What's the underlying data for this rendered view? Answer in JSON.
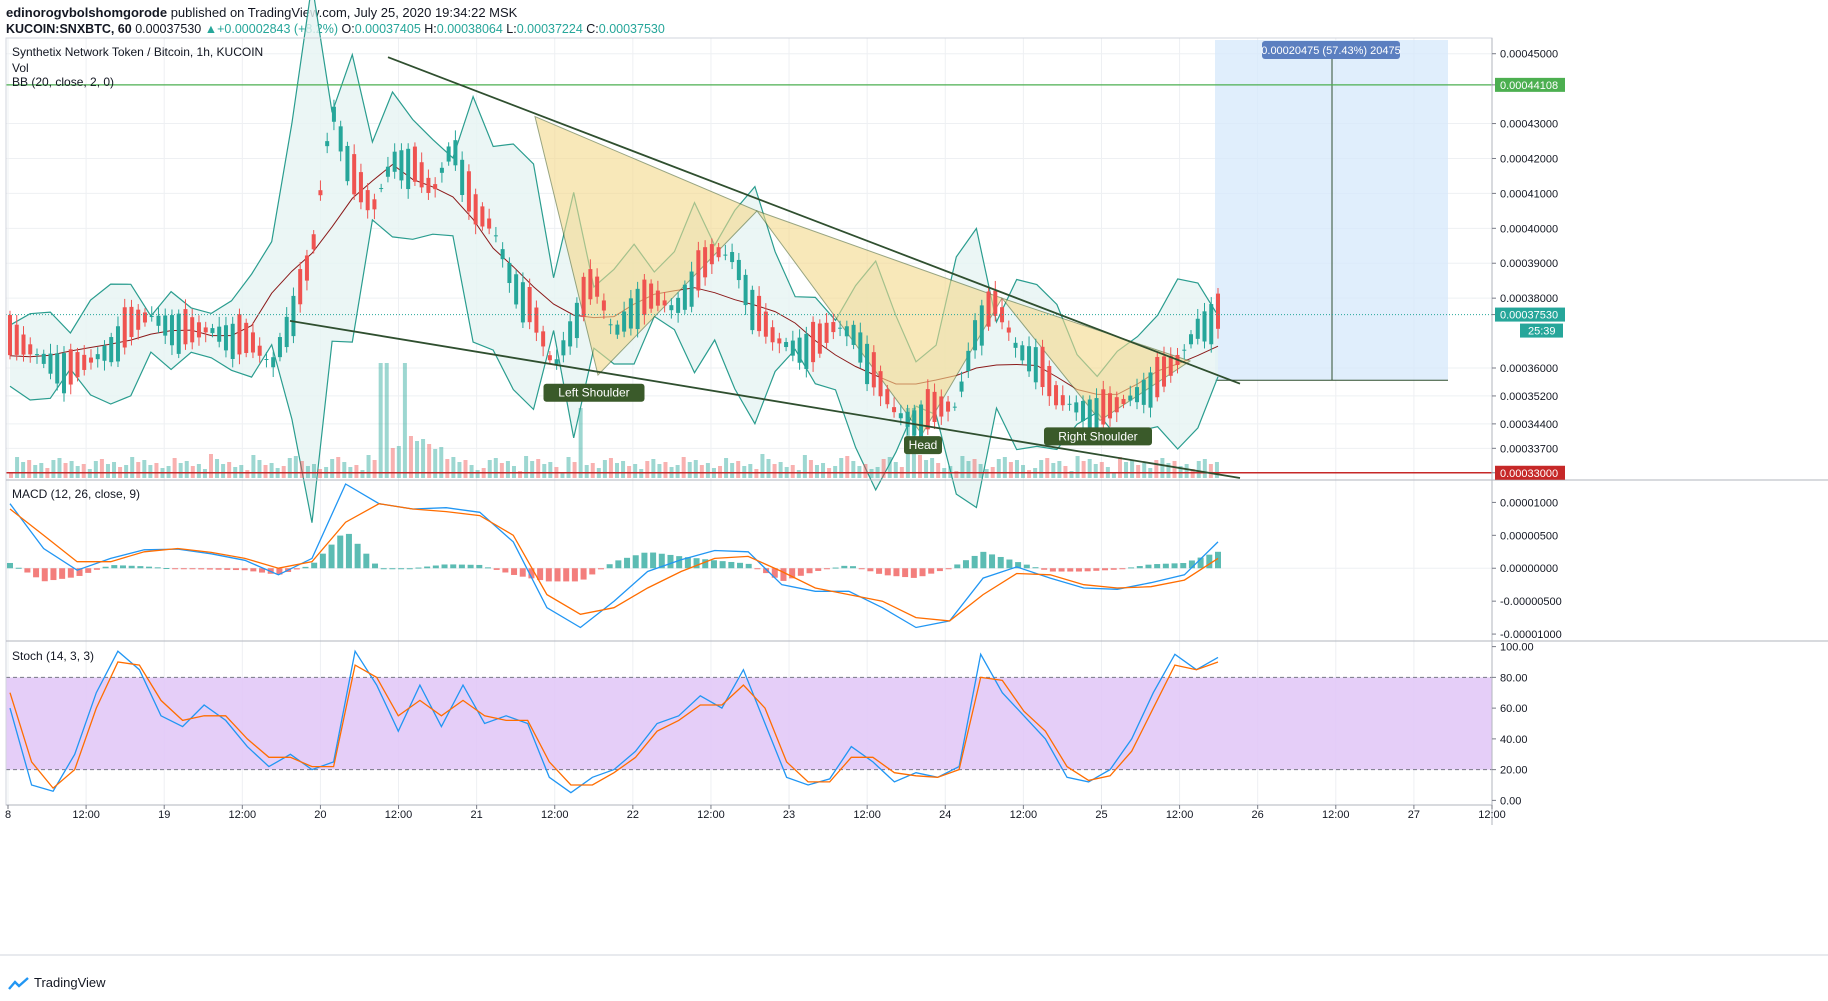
{
  "header": {
    "author": "edinorogvbolshomgorode",
    "published": "published on TradingView.com, July 25, 2020 19:34:22 MSK",
    "symbol": "KUCOIN:SNXBTC, 60",
    "last": "0.00037530",
    "change": "+0.00002843 (+8.2%)",
    "o_label": "O:",
    "o": "0.00037405",
    "h_label": "H:",
    "h": "0.00038064",
    "l_label": "L:",
    "l": "0.00037224",
    "c_label": "C:",
    "c": "0.00037530"
  },
  "footer": {
    "brand": "TradingView"
  },
  "colors": {
    "up": "#26a69a",
    "down": "#ef5350",
    "bb": "#2a9d8f",
    "bb_fill": "#e6f4f2",
    "basis": "#8b1a1a",
    "trend": "#2f4f2f",
    "pattern": "#f5d98b",
    "projection": "#d6e8fb",
    "macd": "#2196f3",
    "signal": "#ff6d00",
    "stoch_k": "#2196f3",
    "stoch_d": "#ff6d00",
    "stoch_band": "#e1c6f7",
    "resistance": "#4caf50",
    "support": "#c62828"
  },
  "chart_data": [
    {
      "type": "candlestick",
      "title": "Synthetix Network Token / Bitcoin, 1h, KUCOIN",
      "legend": [
        "Vol",
        "BB (20, close, 2, 0)"
      ],
      "x_ticks": [
        "8",
        "12:00",
        "19",
        "12:00",
        "20",
        "12:00",
        "21",
        "12:00",
        "22",
        "12:00",
        "23",
        "12:00",
        "24",
        "12:00",
        "25",
        "12:00",
        "26",
        "12:00",
        "27",
        "12:00"
      ],
      "y_ticks": [
        "0.00045000",
        "0.00044108",
        "0.00043000",
        "0.00042000",
        "0.00041000",
        "0.00040000",
        "0.00039000",
        "0.00038000",
        "0.00037530",
        "0.00036000",
        "0.00035200",
        "0.00034400",
        "0.00033700",
        "0.00033000"
      ],
      "ylim": [
        0.0003285,
        0.0004545
      ],
      "close_series_approx": [
        0.000368,
        0.000365,
        0.000362,
        0.000359,
        0.000362,
        0.000366,
        0.000372,
        0.000375,
        0.000372,
        0.00037,
        0.000371,
        0.000369,
        0.000367,
        0.000361,
        0.000375,
        0.000392,
        0.000435,
        0.000415,
        0.000405,
        0.00042,
        0.000418,
        0.00041,
        0.000425,
        0.000405,
        0.0004,
        0.000385,
        0.000375,
        0.00036,
        0.000373,
        0.000385,
        0.00037,
        0.000378,
        0.00038,
        0.000377,
        0.000385,
        0.000393,
        0.000392,
        0.000376,
        0.000368,
        0.000366,
        0.000366,
        0.000372,
        0.00037,
        0.000357,
        0.000347,
        0.000345,
        0.000348,
        0.000349,
        0.000372,
        0.000378,
        0.000366,
        0.000362,
        0.000351,
        0.000349,
        0.000347,
        0.000349,
        0.000353,
        0.000356,
        0.000362,
        0.000372,
        0.000375
      ],
      "annotations": [
        "Left Shoulder",
        "Head",
        "Right Shoulder"
      ],
      "projection_label": "0.00020475 (57.43%) 20475",
      "timer": "25:39",
      "resistance_level": 0.00044108,
      "support_level": 0.00033
    },
    {
      "type": "line",
      "title": "MACD (12, 26, close, 9)",
      "y_ticks": [
        "0.00001000",
        "0.00000500",
        "0.00000000",
        "-0.00000500",
        "-0.00001000"
      ],
      "ylim": [
        -1.09e-05,
        1.31e-05
      ],
      "series": [
        {
          "name": "MACD",
          "values_approx": [
            9.8e-06,
            3e-06,
            -3e-07,
            1.5e-06,
            2.8e-06,
            2.9e-06,
            2.2e-06,
            1.2e-06,
            -1e-06,
            1.5e-06,
            1.28e-05,
            9.8e-06,
            9e-06,
            9.2e-06,
            8.5e-06,
            4e-06,
            -6e-06,
            -9e-06,
            -5e-06,
            -5e-07,
            1.3e-06,
            2.7e-06,
            2.5e-06,
            -2.5e-06,
            -3.5e-06,
            -3.5e-06,
            -6e-06,
            -9e-06,
            -8e-06,
            -1.5e-06,
            2e-07,
            -1.5e-06,
            -3e-06,
            -3.2e-06,
            -2.2e-06,
            -1e-06,
            4e-06
          ]
        },
        {
          "name": "Signal",
          "values_approx": [
            9e-06,
            5e-06,
            1e-06,
            1e-06,
            2.5e-06,
            3e-06,
            2.4e-06,
            1.5e-06,
            0.0,
            1e-06,
            7e-06,
            9.8e-06,
            9e-06,
            8.6e-06,
            8e-06,
            5e-06,
            -4e-06,
            -7e-06,
            -6e-06,
            -3e-06,
            -5e-07,
            1.5e-06,
            1.8e-06,
            -5e-07,
            -3e-06,
            -4e-06,
            -5e-06,
            -7.5e-06,
            -8e-06,
            -4e-06,
            -8e-07,
            -1e-06,
            -2.5e-06,
            -3e-06,
            -2.8e-06,
            -1.8e-06,
            1.5e-06
          ]
        }
      ]
    },
    {
      "type": "line",
      "title": "Stoch (14, 3, 3)",
      "y_ticks": [
        "100.00",
        "80.00",
        "60.00",
        "40.00",
        "20.00",
        "0.00"
      ],
      "ylim": [
        -3,
        103
      ],
      "band": [
        20,
        80
      ],
      "series": [
        {
          "name": "K",
          "values_approx": [
            60,
            10,
            6,
            30,
            70,
            97,
            85,
            55,
            48,
            62,
            52,
            35,
            22,
            30,
            20,
            25,
            97,
            75,
            45,
            75,
            48,
            75,
            50,
            55,
            50,
            15,
            5,
            15,
            20,
            32,
            50,
            55,
            68,
            60,
            85,
            50,
            15,
            10,
            14,
            35,
            25,
            12,
            18,
            15,
            22,
            95,
            70,
            55,
            40,
            15,
            12,
            20,
            40,
            70,
            95,
            85,
            93
          ]
        },
        {
          "name": "D",
          "values_approx": [
            70,
            25,
            8,
            20,
            60,
            90,
            88,
            65,
            52,
            55,
            55,
            40,
            28,
            28,
            22,
            22,
            88,
            80,
            55,
            65,
            55,
            65,
            55,
            52,
            52,
            25,
            10,
            10,
            18,
            28,
            45,
            52,
            62,
            62,
            75,
            60,
            25,
            12,
            12,
            28,
            28,
            18,
            16,
            15,
            20,
            80,
            78,
            58,
            45,
            22,
            13,
            16,
            32,
            60,
            88,
            85,
            90
          ]
        }
      ]
    }
  ]
}
